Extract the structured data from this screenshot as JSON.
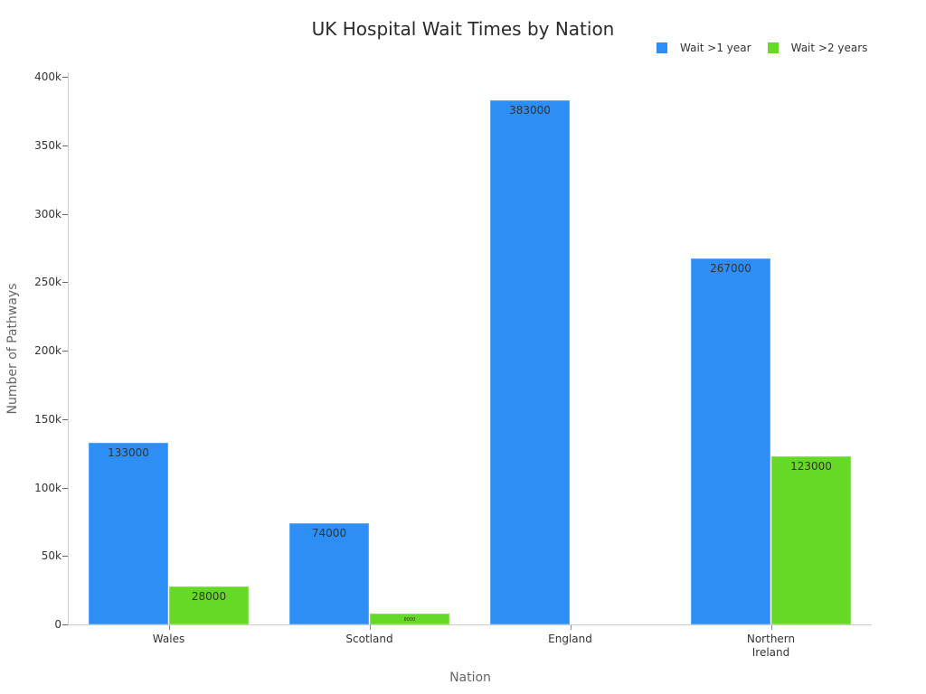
{
  "chart_data": {
    "type": "bar",
    "title": "UK Hospital Wait Times by Nation",
    "xlabel": "Nation",
    "ylabel": "Number of Pathways",
    "categories": [
      "Wales",
      "Scotland",
      "England",
      "Northern Ireland"
    ],
    "category_labels": [
      [
        "Wales"
      ],
      [
        "Scotland"
      ],
      [
        "England"
      ],
      [
        "Northern",
        "Ireland"
      ]
    ],
    "series": [
      {
        "name": "Wait >1 year",
        "color": "#2d8ff5",
        "values": [
          133000,
          74000,
          383000,
          267000
        ],
        "labels": [
          "133000",
          "74000",
          "383000",
          "267000"
        ]
      },
      {
        "name": "Wait >2 years",
        "color": "#66d926",
        "values": [
          28000,
          8000,
          null,
          123000
        ],
        "labels": [
          "28000",
          "8000",
          "",
          "123000"
        ]
      }
    ],
    "ylim": [
      0,
      400000
    ],
    "yticks": [
      {
        "value": 0,
        "label": "0"
      },
      {
        "value": 50000,
        "label": "50k"
      },
      {
        "value": 100000,
        "label": "100k"
      },
      {
        "value": 150000,
        "label": "150k"
      },
      {
        "value": 200000,
        "label": "200k"
      },
      {
        "value": 250000,
        "label": "250k"
      },
      {
        "value": 300000,
        "label": "300k"
      },
      {
        "value": 350000,
        "label": "350k"
      },
      {
        "value": 400000,
        "label": "400k"
      }
    ],
    "grid": false,
    "legend_position": "top-right"
  }
}
